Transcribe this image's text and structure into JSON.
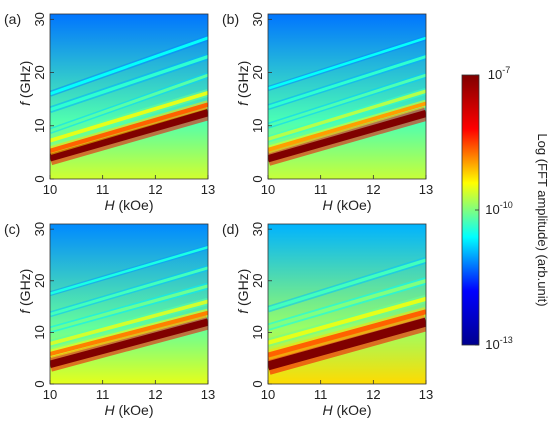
{
  "chart_data": [
    {
      "type": "heatmap",
      "panel_label": "(a)",
      "xlabel_italic": "H",
      "xlabel_unit": " (kOe)",
      "ylabel_italic": "f",
      "ylabel_unit": " (GHz)",
      "x_ticks": [
        "10",
        "11",
        "12",
        "13"
      ],
      "y_ticks": [
        "0",
        "10",
        "20",
        "30"
      ],
      "xlim": [
        10,
        13
      ],
      "ylim": [
        0,
        31
      ],
      "background_levels": [
        0.58,
        0.3
      ],
      "modes": [
        {
          "f_at_10": 4.0,
          "f_at_13": 12.5,
          "level": 1.0,
          "width": 0.9
        },
        {
          "f_at_10": 5.3,
          "f_at_13": 14.0,
          "level": 0.78,
          "width": 0.5
        },
        {
          "f_at_10": 7.2,
          "f_at_13": 16.2,
          "level": 0.6,
          "width": 0.45
        },
        {
          "f_at_10": 9.0,
          "f_at_13": 19.5,
          "level": 0.46,
          "width": 0.35
        },
        {
          "f_at_10": 13.0,
          "f_at_13": 23.0,
          "level": 0.42,
          "width": 0.4
        },
        {
          "f_at_10": 16.0,
          "f_at_13": 26.5,
          "level": 0.38,
          "width": 0.35
        }
      ]
    },
    {
      "type": "heatmap",
      "panel_label": "(b)",
      "xlabel_italic": "H",
      "xlabel_unit": " (kOe)",
      "ylabel_italic": "f",
      "ylabel_unit": " (GHz)",
      "x_ticks": [
        "10",
        "11",
        "12",
        "13"
      ],
      "y_ticks": [
        "0",
        "10",
        "20",
        "30"
      ],
      "xlim": [
        10,
        13
      ],
      "ylim": [
        0,
        31
      ],
      "background_levels": [
        0.57,
        0.3
      ],
      "modes": [
        {
          "f_at_10": 3.8,
          "f_at_13": 12.3,
          "level": 1.0,
          "width": 0.85
        },
        {
          "f_at_10": 5.5,
          "f_at_13": 14.2,
          "level": 0.72,
          "width": 0.45
        },
        {
          "f_at_10": 7.5,
          "f_at_13": 16.5,
          "level": 0.55,
          "width": 0.4
        },
        {
          "f_at_10": 10.0,
          "f_at_13": 19.5,
          "level": 0.45,
          "width": 0.35
        },
        {
          "f_at_10": 13.5,
          "f_at_13": 23.0,
          "level": 0.42,
          "width": 0.35
        },
        {
          "f_at_10": 17.0,
          "f_at_13": 26.5,
          "level": 0.38,
          "width": 0.3
        }
      ]
    },
    {
      "type": "heatmap",
      "panel_label": "(c)",
      "xlabel_italic": "H",
      "xlabel_unit": " (kOe)",
      "ylabel_italic": "f",
      "ylabel_unit": " (GHz)",
      "x_ticks": [
        "10",
        "11",
        "12",
        "13"
      ],
      "y_ticks": [
        "0",
        "10",
        "20",
        "30"
      ],
      "xlim": [
        10,
        13
      ],
      "ylim": [
        0,
        31
      ],
      "background_levels": [
        0.6,
        0.32
      ],
      "modes": [
        {
          "f_at_10": 3.8,
          "f_at_13": 12.0,
          "level": 1.0,
          "width": 0.9
        },
        {
          "f_at_10": 5.8,
          "f_at_13": 13.8,
          "level": 0.75,
          "width": 0.5
        },
        {
          "f_at_10": 7.8,
          "f_at_13": 16.0,
          "level": 0.58,
          "width": 0.45
        },
        {
          "f_at_10": 10.5,
          "f_at_13": 19.0,
          "level": 0.48,
          "width": 0.4
        },
        {
          "f_at_10": 13.5,
          "f_at_13": 22.5,
          "level": 0.44,
          "width": 0.35
        },
        {
          "f_at_10": 17.5,
          "f_at_13": 26.5,
          "level": 0.4,
          "width": 0.3
        }
      ]
    },
    {
      "type": "heatmap",
      "panel_label": "(d)",
      "xlabel_italic": "H",
      "xlabel_unit": " (kOe)",
      "ylabel_italic": "f",
      "ylabel_unit": " (GHz)",
      "x_ticks": [
        "10",
        "11",
        "12",
        "13"
      ],
      "y_ticks": [
        "0",
        "10",
        "20",
        "30"
      ],
      "xlim": [
        10,
        13
      ],
      "ylim": [
        0,
        31
      ],
      "background_levels": [
        0.66,
        0.36
      ],
      "modes": [
        {
          "f_at_10": 3.5,
          "f_at_13": 12.0,
          "level": 1.0,
          "width": 1.1
        },
        {
          "f_at_10": 5.6,
          "f_at_13": 14.0,
          "level": 0.78,
          "width": 0.6
        },
        {
          "f_at_10": 8.0,
          "f_at_13": 16.5,
          "level": 0.6,
          "width": 0.5
        },
        {
          "f_at_10": 11.0,
          "f_at_13": 20.0,
          "level": 0.5,
          "width": 0.45
        },
        {
          "f_at_10": 14.5,
          "f_at_13": 24.0,
          "level": 0.44,
          "width": 0.4
        }
      ]
    }
  ],
  "colorbar": {
    "label": "Log (FFT amplitude) (arb.unit)",
    "ticks": [
      {
        "base": "10",
        "exp": "-7"
      },
      {
        "base": "10",
        "exp": "-10"
      },
      {
        "base": "10",
        "exp": "-13"
      }
    ],
    "colormap": "jet",
    "colors": [
      "#00008f",
      "#0000ff",
      "#00ffff",
      "#ffff00",
      "#ff0000",
      "#800000"
    ]
  }
}
